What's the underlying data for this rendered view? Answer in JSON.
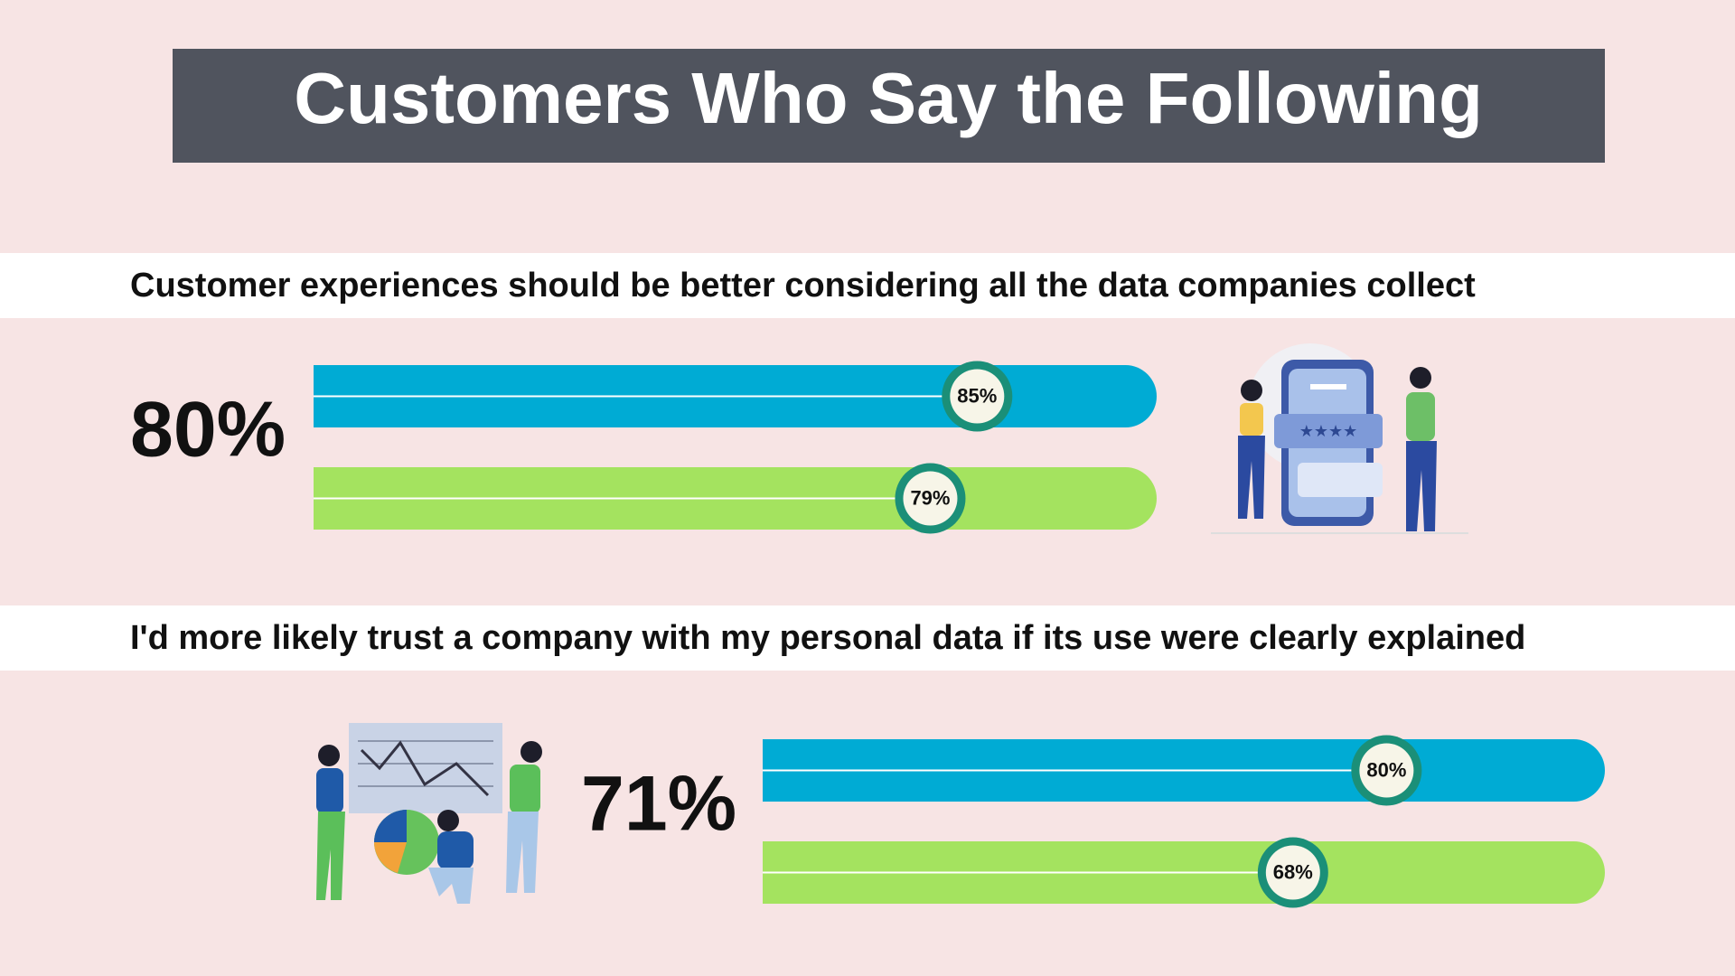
{
  "title": "Customers Who Say the Following",
  "chart_data": [
    {
      "type": "progress",
      "statement": "Customer experiences should be better considering all the data companies collect",
      "headline": "80%",
      "xlim": [
        0,
        108
      ],
      "series": [
        {
          "color": "#00abd4",
          "values": [
            85
          ],
          "value_labels": [
            "85%"
          ]
        },
        {
          "color": "#a4e35f",
          "values": [
            79
          ],
          "value_labels": [
            "79%"
          ]
        }
      ]
    },
    {
      "type": "progress",
      "statement": "I'd more likely trust a company with my personal data if its use were clearly explained",
      "headline": "71%",
      "xlim": [
        0,
        108
      ],
      "series": [
        {
          "color": "#00abd4",
          "values": [
            80
          ],
          "value_labels": [
            "80%"
          ]
        },
        {
          "color": "#a4e35f",
          "values": [
            68
          ],
          "value_labels": [
            "68%"
          ]
        }
      ]
    }
  ]
}
